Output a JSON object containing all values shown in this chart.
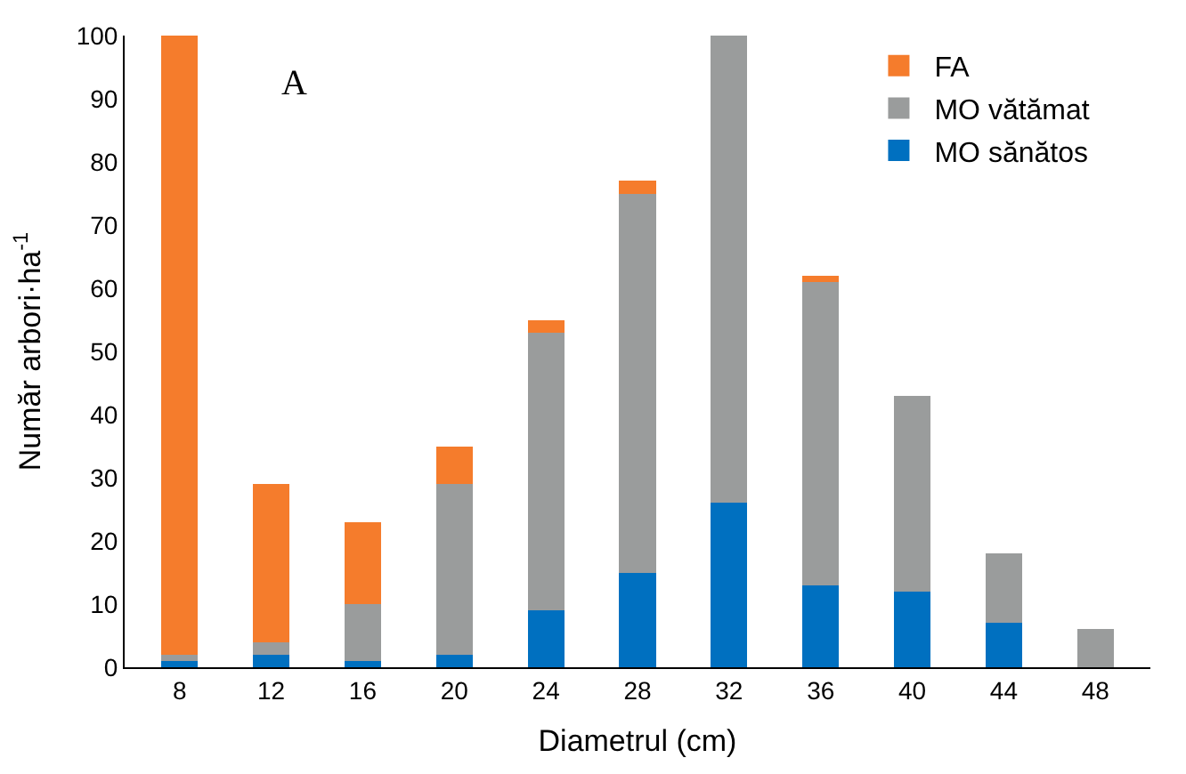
{
  "chart_data": {
    "type": "bar",
    "stacked": true,
    "xlabel": "Diametrul (cm)",
    "ylabel": "Număr arbori·ha$^{-1}$",
    "categories": [
      "8",
      "12",
      "16",
      "20",
      "24",
      "28",
      "32",
      "36",
      "40",
      "44",
      "48"
    ],
    "series": [
      {
        "name": "MO sănătos",
        "color": "#0070c0",
        "values": [
          1,
          2,
          1,
          2,
          9,
          15,
          26,
          13,
          12,
          7,
          0
        ]
      },
      {
        "name": "MO vătămat",
        "color": "#9a9c9c",
        "values": [
          1,
          2,
          9,
          27,
          44,
          60,
          74,
          48,
          31,
          11,
          6
        ]
      },
      {
        "name": "FA",
        "color": "#f57c2c",
        "values": [
          98,
          25,
          13,
          6,
          2,
          2,
          0,
          1,
          0,
          0,
          0
        ]
      }
    ],
    "ylim": [
      0,
      100
    ],
    "yticks": [
      0,
      10,
      20,
      30,
      40,
      50,
      60,
      70,
      80,
      90,
      100
    ],
    "grid": false,
    "legend": "top right",
    "annotations": [
      "A"
    ]
  }
}
